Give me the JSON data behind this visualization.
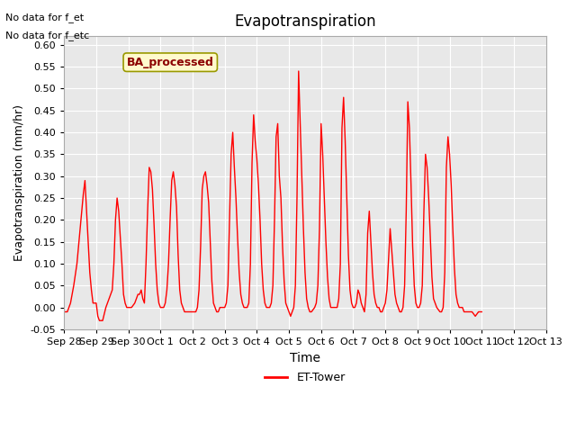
{
  "title": "Evapotranspiration",
  "xlabel": "Time",
  "ylabel": "Evapotranspiration (mm/hr)",
  "ylim": [
    -0.05,
    0.62
  ],
  "yticks": [
    -0.05,
    0.0,
    0.05,
    0.1,
    0.15,
    0.2,
    0.25,
    0.3,
    0.35,
    0.4,
    0.45,
    0.5,
    0.55,
    0.6
  ],
  "bg_color": "#e8e8e8",
  "line_color": "#ff0000",
  "legend_label": "ET-Tower",
  "no_data_text": [
    "No data for f_et",
    "No data for f_etc"
  ],
  "ba_label": "BA_processed",
  "x_tick_positions": [
    0,
    1,
    2,
    3,
    4,
    5,
    6,
    7,
    8,
    9,
    10,
    11,
    12,
    13,
    14,
    15
  ],
  "x_tick_labels": [
    "Sep 28",
    "Sep 29",
    "Sep 30",
    "Oct 1",
    "Oct 2",
    "Oct 3",
    "Oct 4",
    "Oct 5",
    "Oct 6",
    "Oct 7",
    "Oct 8",
    "Oct 9",
    "Oct 10",
    "Oct 11",
    "Oct 12",
    "Oct 13"
  ],
  "xlim": [
    0,
    15
  ],
  "data_points": [
    [
      0,
      -0.01
    ],
    [
      0.1,
      -0.01
    ],
    [
      0.2,
      0.01
    ],
    [
      0.3,
      0.05
    ],
    [
      0.4,
      0.1
    ],
    [
      0.5,
      0.18
    ],
    [
      0.6,
      0.26
    ],
    [
      0.65,
      0.29
    ],
    [
      0.7,
      0.22
    ],
    [
      0.75,
      0.15
    ],
    [
      0.8,
      0.08
    ],
    [
      0.85,
      0.04
    ],
    [
      0.9,
      0.01
    ],
    [
      0.95,
      0.01
    ],
    [
      1.0,
      0.01
    ],
    [
      1.05,
      -0.02
    ],
    [
      1.1,
      -0.03
    ],
    [
      1.15,
      -0.03
    ],
    [
      1.2,
      -0.03
    ],
    [
      1.3,
      0.0
    ],
    [
      1.4,
      0.02
    ],
    [
      1.5,
      0.04
    ],
    [
      1.55,
      0.1
    ],
    [
      1.6,
      0.2
    ],
    [
      1.65,
      0.25
    ],
    [
      1.7,
      0.22
    ],
    [
      1.75,
      0.16
    ],
    [
      1.8,
      0.1
    ],
    [
      1.85,
      0.03
    ],
    [
      1.9,
      0.01
    ],
    [
      1.95,
      0.0
    ],
    [
      2.0,
      0.0
    ],
    [
      2.1,
      0.0
    ],
    [
      2.2,
      0.01
    ],
    [
      2.3,
      0.03
    ],
    [
      2.35,
      0.03
    ],
    [
      2.4,
      0.04
    ],
    [
      2.45,
      0.02
    ],
    [
      2.5,
      0.01
    ],
    [
      2.55,
      0.1
    ],
    [
      2.6,
      0.22
    ],
    [
      2.65,
      0.32
    ],
    [
      2.7,
      0.31
    ],
    [
      2.75,
      0.27
    ],
    [
      2.8,
      0.19
    ],
    [
      2.85,
      0.1
    ],
    [
      2.9,
      0.04
    ],
    [
      2.95,
      0.01
    ],
    [
      3.0,
      0.0
    ],
    [
      3.1,
      0.0
    ],
    [
      3.15,
      0.01
    ],
    [
      3.2,
      0.04
    ],
    [
      3.25,
      0.1
    ],
    [
      3.3,
      0.2
    ],
    [
      3.35,
      0.29
    ],
    [
      3.4,
      0.31
    ],
    [
      3.45,
      0.28
    ],
    [
      3.5,
      0.23
    ],
    [
      3.55,
      0.12
    ],
    [
      3.6,
      0.04
    ],
    [
      3.65,
      0.01
    ],
    [
      3.7,
      0.0
    ],
    [
      3.75,
      -0.01
    ],
    [
      3.8,
      -0.01
    ],
    [
      3.9,
      -0.01
    ],
    [
      4.0,
      -0.01
    ],
    [
      4.05,
      -0.01
    ],
    [
      4.1,
      -0.01
    ],
    [
      4.15,
      0.0
    ],
    [
      4.2,
      0.04
    ],
    [
      4.25,
      0.14
    ],
    [
      4.3,
      0.27
    ],
    [
      4.35,
      0.3
    ],
    [
      4.4,
      0.31
    ],
    [
      4.45,
      0.28
    ],
    [
      4.5,
      0.24
    ],
    [
      4.55,
      0.15
    ],
    [
      4.6,
      0.06
    ],
    [
      4.65,
      0.01
    ],
    [
      4.7,
      0.0
    ],
    [
      4.75,
      -0.01
    ],
    [
      4.8,
      -0.01
    ],
    [
      4.85,
      0.0
    ],
    [
      5.0,
      0.0
    ],
    [
      5.05,
      0.01
    ],
    [
      5.1,
      0.05
    ],
    [
      5.15,
      0.2
    ],
    [
      5.2,
      0.35
    ],
    [
      5.25,
      0.4
    ],
    [
      5.3,
      0.32
    ],
    [
      5.35,
      0.25
    ],
    [
      5.4,
      0.16
    ],
    [
      5.45,
      0.08
    ],
    [
      5.5,
      0.03
    ],
    [
      5.55,
      0.01
    ],
    [
      5.6,
      0.0
    ],
    [
      5.7,
      0.0
    ],
    [
      5.75,
      0.01
    ],
    [
      5.8,
      0.1
    ],
    [
      5.85,
      0.33
    ],
    [
      5.9,
      0.44
    ],
    [
      5.95,
      0.38
    ],
    [
      6.0,
      0.34
    ],
    [
      6.05,
      0.28
    ],
    [
      6.1,
      0.2
    ],
    [
      6.15,
      0.1
    ],
    [
      6.2,
      0.04
    ],
    [
      6.25,
      0.01
    ],
    [
      6.3,
      0.0
    ],
    [
      6.4,
      0.0
    ],
    [
      6.45,
      0.01
    ],
    [
      6.5,
      0.05
    ],
    [
      6.55,
      0.2
    ],
    [
      6.6,
      0.39
    ],
    [
      6.65,
      0.42
    ],
    [
      6.7,
      0.3
    ],
    [
      6.75,
      0.25
    ],
    [
      6.8,
      0.14
    ],
    [
      6.85,
      0.06
    ],
    [
      6.9,
      0.01
    ],
    [
      6.95,
      0.0
    ],
    [
      7.0,
      -0.01
    ],
    [
      7.05,
      -0.02
    ],
    [
      7.1,
      -0.01
    ],
    [
      7.15,
      0.0
    ],
    [
      7.2,
      0.05
    ],
    [
      7.25,
      0.25
    ],
    [
      7.3,
      0.54
    ],
    [
      7.35,
      0.42
    ],
    [
      7.4,
      0.3
    ],
    [
      7.45,
      0.18
    ],
    [
      7.5,
      0.08
    ],
    [
      7.55,
      0.02
    ],
    [
      7.6,
      0.0
    ],
    [
      7.65,
      -0.01
    ],
    [
      7.7,
      -0.01
    ],
    [
      7.8,
      0.0
    ],
    [
      7.85,
      0.01
    ],
    [
      7.9,
      0.05
    ],
    [
      7.95,
      0.18
    ],
    [
      8.0,
      0.42
    ],
    [
      8.05,
      0.35
    ],
    [
      8.1,
      0.25
    ],
    [
      8.15,
      0.15
    ],
    [
      8.2,
      0.07
    ],
    [
      8.25,
      0.02
    ],
    [
      8.3,
      0.0
    ],
    [
      8.35,
      0.0
    ],
    [
      8.5,
      0.0
    ],
    [
      8.55,
      0.02
    ],
    [
      8.6,
      0.1
    ],
    [
      8.65,
      0.41
    ],
    [
      8.7,
      0.48
    ],
    [
      8.75,
      0.38
    ],
    [
      8.8,
      0.25
    ],
    [
      8.85,
      0.12
    ],
    [
      8.9,
      0.04
    ],
    [
      8.95,
      0.01
    ],
    [
      9.0,
      0.0
    ],
    [
      9.05,
      0.0
    ],
    [
      9.1,
      0.01
    ],
    [
      9.15,
      0.04
    ],
    [
      9.2,
      0.03
    ],
    [
      9.25,
      0.01
    ],
    [
      9.3,
      0.0
    ],
    [
      9.35,
      -0.01
    ],
    [
      9.4,
      0.03
    ],
    [
      9.45,
      0.17
    ],
    [
      9.5,
      0.22
    ],
    [
      9.55,
      0.15
    ],
    [
      9.6,
      0.08
    ],
    [
      9.65,
      0.03
    ],
    [
      9.7,
      0.01
    ],
    [
      9.75,
      0.0
    ],
    [
      9.8,
      0.0
    ],
    [
      9.85,
      -0.01
    ],
    [
      9.9,
      -0.01
    ],
    [
      9.95,
      0.0
    ],
    [
      10.0,
      0.01
    ],
    [
      10.05,
      0.04
    ],
    [
      10.1,
      0.11
    ],
    [
      10.15,
      0.18
    ],
    [
      10.2,
      0.13
    ],
    [
      10.25,
      0.08
    ],
    [
      10.3,
      0.03
    ],
    [
      10.35,
      0.01
    ],
    [
      10.4,
      0.0
    ],
    [
      10.45,
      -0.01
    ],
    [
      10.5,
      -0.01
    ],
    [
      10.55,
      0.0
    ],
    [
      10.6,
      0.05
    ],
    [
      10.65,
      0.22
    ],
    [
      10.7,
      0.47
    ],
    [
      10.75,
      0.41
    ],
    [
      10.8,
      0.28
    ],
    [
      10.85,
      0.14
    ],
    [
      10.9,
      0.05
    ],
    [
      10.95,
      0.01
    ],
    [
      11.0,
      0.0
    ],
    [
      11.05,
      0.0
    ],
    [
      11.1,
      0.01
    ],
    [
      11.15,
      0.05
    ],
    [
      11.2,
      0.22
    ],
    [
      11.25,
      0.35
    ],
    [
      11.3,
      0.32
    ],
    [
      11.35,
      0.25
    ],
    [
      11.4,
      0.16
    ],
    [
      11.45,
      0.07
    ],
    [
      11.5,
      0.02
    ],
    [
      11.55,
      0.01
    ],
    [
      11.6,
      0.0
    ],
    [
      11.7,
      -0.01
    ],
    [
      11.75,
      -0.01
    ],
    [
      11.8,
      0.0
    ],
    [
      11.85,
      0.08
    ],
    [
      11.9,
      0.32
    ],
    [
      11.95,
      0.39
    ],
    [
      12.0,
      0.35
    ],
    [
      12.05,
      0.28
    ],
    [
      12.1,
      0.18
    ],
    [
      12.15,
      0.09
    ],
    [
      12.2,
      0.03
    ],
    [
      12.25,
      0.01
    ],
    [
      12.3,
      0.0
    ],
    [
      12.4,
      0.0
    ],
    [
      12.45,
      -0.01
    ],
    [
      12.5,
      -0.01
    ],
    [
      12.6,
      -0.01
    ],
    [
      12.7,
      -0.01
    ],
    [
      12.8,
      -0.02
    ],
    [
      12.9,
      -0.01
    ],
    [
      13.0,
      -0.01
    ]
  ]
}
